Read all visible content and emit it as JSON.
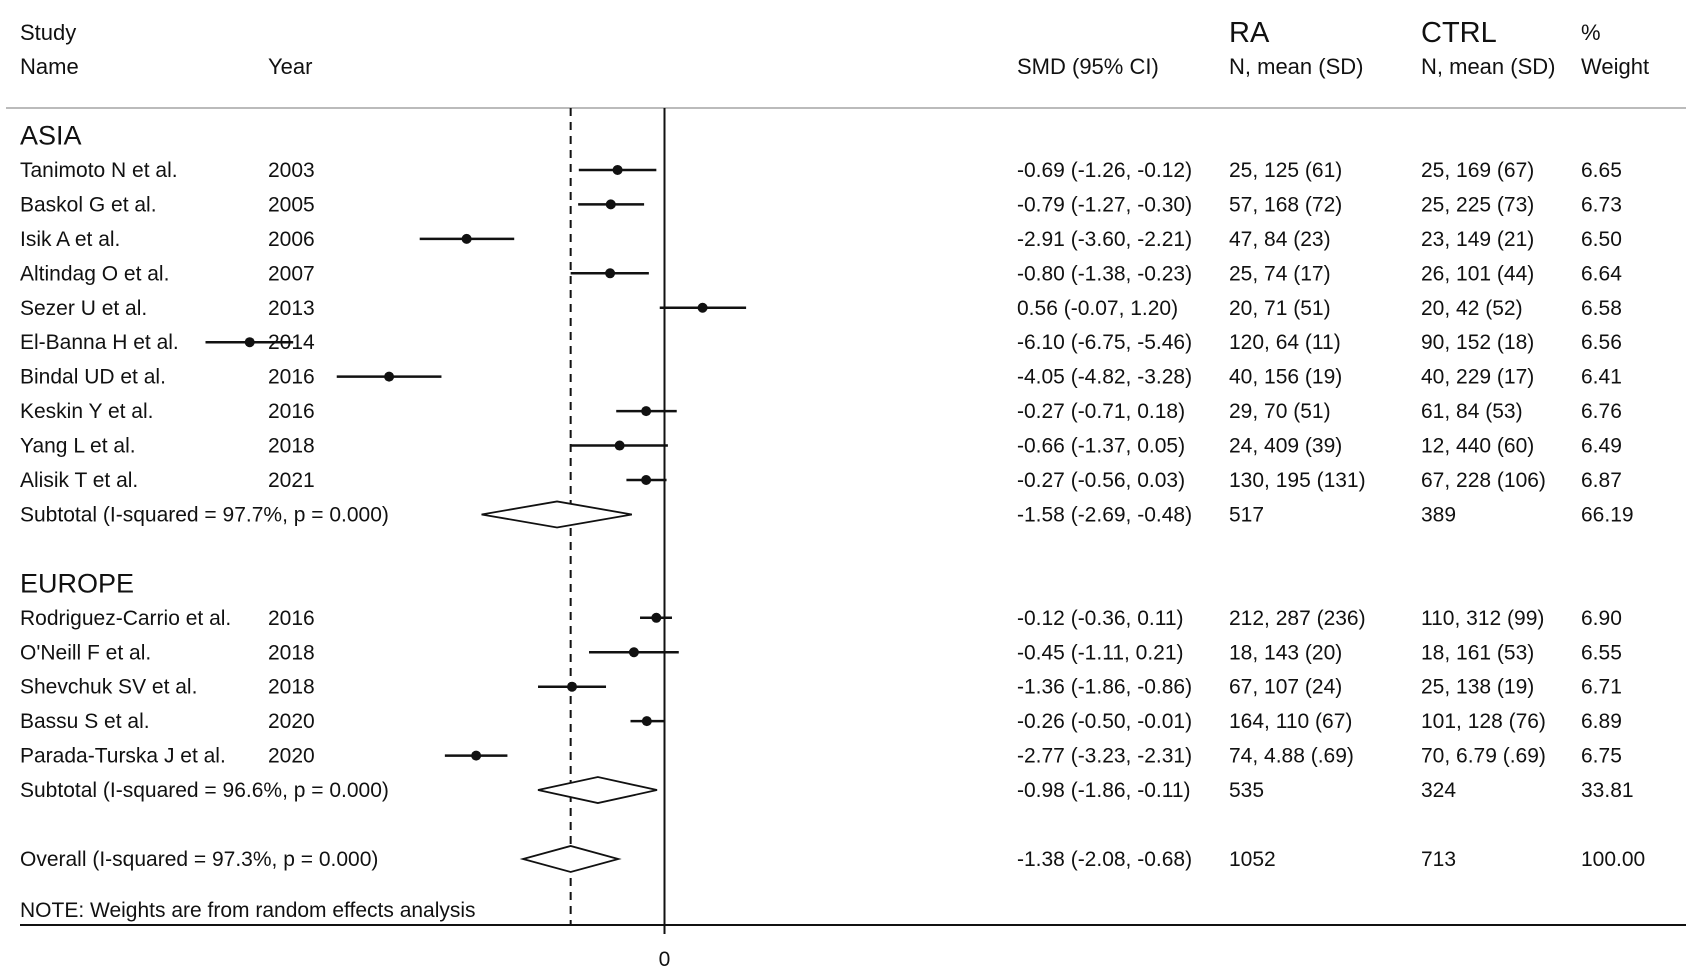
{
  "header": {
    "col_study": [
      "Study",
      "Name"
    ],
    "col_year": "Year",
    "col_smd": "SMD (95% CI)",
    "col_ra": [
      "RA",
      "N, mean (SD)"
    ],
    "col_ctrl": [
      "CTRL",
      "N, mean (SD)"
    ],
    "col_weight": [
      "%",
      "Weight"
    ]
  },
  "note": "NOTE: Weights are from random effects analysis",
  "chart_data": {
    "type": "forest",
    "x_tick_labels": [
      "0"
    ],
    "null_line": 0,
    "overall_line": -1.38,
    "groups": [
      {
        "name": "ASIA",
        "studies": [
          {
            "name": "Tanimoto N et al.",
            "year": "2003",
            "smd": -0.69,
            "lo": -1.26,
            "hi": -0.12,
            "ci_text": "-0.69 (-1.26, -0.12)",
            "ra": "25, 125 (61)",
            "ctrl": "25, 169 (67)",
            "weight": "6.65"
          },
          {
            "name": "Baskol G et al.",
            "year": "2005",
            "smd": -0.79,
            "lo": -1.27,
            "hi": -0.3,
            "ci_text": "-0.79 (-1.27, -0.30)",
            "ra": "57, 168 (72)",
            "ctrl": "25, 225 (73)",
            "weight": "6.73"
          },
          {
            "name": "Isik A et al.",
            "year": "2006",
            "smd": -2.91,
            "lo": -3.6,
            "hi": -2.21,
            "ci_text": "-2.91 (-3.60, -2.21)",
            "ra": "47, 84 (23)",
            "ctrl": "23, 149 (21)",
            "weight": "6.50"
          },
          {
            "name": "Altindag O et al.",
            "year": "2007",
            "smd": -0.8,
            "lo": -1.38,
            "hi": -0.23,
            "ci_text": "-0.80 (-1.38, -0.23)",
            "ra": "25, 74 (17)",
            "ctrl": "26, 101 (44)",
            "weight": "6.64"
          },
          {
            "name": "Sezer U et al.",
            "year": "2013",
            "smd": 0.56,
            "lo": -0.07,
            "hi": 1.2,
            "ci_text": "0.56 (-0.07, 1.20)",
            "ra": "20, 71 (51)",
            "ctrl": "20, 42 (52)",
            "weight": "6.58"
          },
          {
            "name": "El-Banna H et al.",
            "year": "2014",
            "smd": -6.1,
            "lo": -6.75,
            "hi": -5.46,
            "ci_text": "-6.10 (-6.75, -5.46)",
            "ra": "120, 64 (11)",
            "ctrl": "90, 152 (18)",
            "weight": "6.56"
          },
          {
            "name": "Bindal UD et al.",
            "year": "2016",
            "smd": -4.05,
            "lo": -4.82,
            "hi": -3.28,
            "ci_text": "-4.05 (-4.82, -3.28)",
            "ra": "40, 156 (19)",
            "ctrl": "40, 229 (17)",
            "weight": "6.41"
          },
          {
            "name": "Keskin Y et al.",
            "year": "2016",
            "smd": -0.27,
            "lo": -0.71,
            "hi": 0.18,
            "ci_text": "-0.27 (-0.71, 0.18)",
            "ra": "29, 70 (51)",
            "ctrl": "61, 84 (53)",
            "weight": "6.76"
          },
          {
            "name": "Yang L et al.",
            "year": "2018",
            "smd": -0.66,
            "lo": -1.37,
            "hi": 0.05,
            "ci_text": "-0.66 (-1.37, 0.05)",
            "ra": "24, 409 (39)",
            "ctrl": "12, 440 (60)",
            "weight": "6.49"
          },
          {
            "name": "Alisik T et al.",
            "year": "2021",
            "smd": -0.27,
            "lo": -0.56,
            "hi": 0.03,
            "ci_text": "-0.27 (-0.56, 0.03)",
            "ra": "130, 195 (131)",
            "ctrl": "67, 228 (106)",
            "weight": "6.87"
          }
        ],
        "subtotal": {
          "label": "Subtotal  (I-squared = 97.7%, p = 0.000)",
          "smd": -1.58,
          "lo": -2.69,
          "hi": -0.48,
          "ci_text": "-1.58 (-2.69, -0.48)",
          "ra": "517",
          "ctrl": "389",
          "weight": "66.19"
        }
      },
      {
        "name": "EUROPE",
        "studies": [
          {
            "name": "Rodriguez-Carrio et al.",
            "year": "2016",
            "smd": -0.12,
            "lo": -0.36,
            "hi": 0.11,
            "ci_text": "-0.12 (-0.36, 0.11)",
            "ra": "212, 287 (236)",
            "ctrl": "110, 312 (99)",
            "weight": "6.90"
          },
          {
            "name": "O'Neill F et al.",
            "year": "2018",
            "smd": -0.45,
            "lo": -1.11,
            "hi": 0.21,
            "ci_text": "-0.45 (-1.11, 0.21)",
            "ra": "18, 143 (20)",
            "ctrl": "18, 161 (53)",
            "weight": "6.55"
          },
          {
            "name": "Shevchuk SV et al.",
            "year": "2018",
            "smd": -1.36,
            "lo": -1.86,
            "hi": -0.86,
            "ci_text": "-1.36 (-1.86, -0.86)",
            "ra": "67, 107 (24)",
            "ctrl": "25, 138 (19)",
            "weight": "6.71"
          },
          {
            "name": "Bassu S et al.",
            "year": "2020",
            "smd": -0.26,
            "lo": -0.5,
            "hi": -0.01,
            "ci_text": "-0.26 (-0.50, -0.01)",
            "ra": "164, 110 (67)",
            "ctrl": "101, 128 (76)",
            "weight": "6.89"
          },
          {
            "name": "Parada-Turska J et al.",
            "year": "2020",
            "smd": -2.77,
            "lo": -3.23,
            "hi": -2.31,
            "ci_text": "-2.77 (-3.23, -2.31)",
            "ra": "74, 4.88 (.69)",
            "ctrl": "70, 6.79 (.69)",
            "weight": "6.75"
          }
        ],
        "subtotal": {
          "label": "Subtotal  (I-squared = 96.6%, p = 0.000)",
          "smd": -0.98,
          "lo": -1.86,
          "hi": -0.11,
          "ci_text": "-0.98 (-1.86, -0.11)",
          "ra": "535",
          "ctrl": "324",
          "weight": "33.81"
        }
      }
    ],
    "overall": {
      "label": "Overall  (I-squared = 97.3%, p = 0.000)",
      "smd": -1.38,
      "lo": -2.08,
      "hi": -0.68,
      "ci_text": "-1.38 (-2.08, -0.68)",
      "ra": "1052",
      "ctrl": "713",
      "weight": "100.00"
    }
  }
}
